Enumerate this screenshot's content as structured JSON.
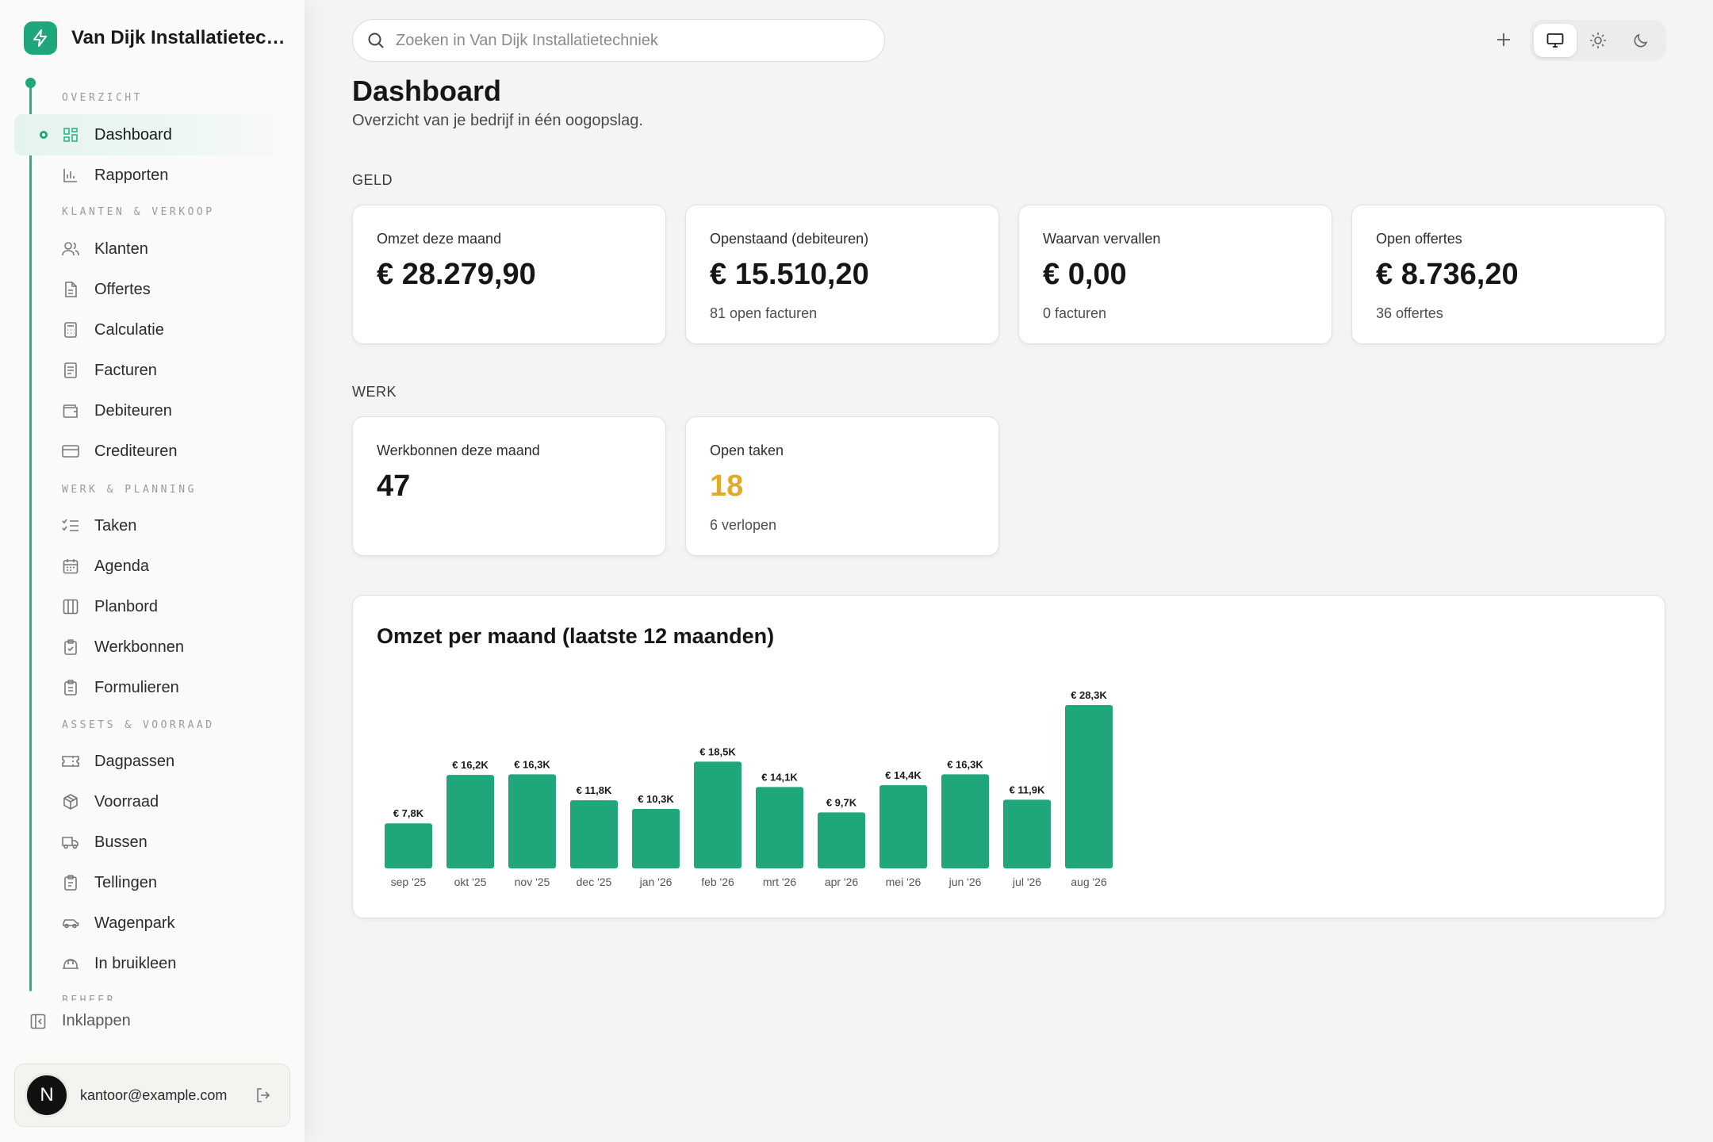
{
  "brand": {
    "name": "Van Dijk Installatietechniek"
  },
  "sidebar": {
    "sections": [
      {
        "label": "OVERZICHT"
      },
      {
        "label": "KLANTEN & VERKOOP"
      },
      {
        "label": "WERK & PLANNING"
      },
      {
        "label": "ASSETS & VOORRAAD"
      },
      {
        "label": "BEHEER"
      }
    ],
    "items": [
      {
        "label": "Dashboard",
        "icon": "grid-icon",
        "active": true
      },
      {
        "label": "Rapporten",
        "icon": "bar-chart-icon"
      },
      {
        "label": "Klanten",
        "icon": "users-icon"
      },
      {
        "label": "Offertes",
        "icon": "document-icon"
      },
      {
        "label": "Calculatie",
        "icon": "calculator-icon"
      },
      {
        "label": "Facturen",
        "icon": "receipt-icon"
      },
      {
        "label": "Debiteuren",
        "icon": "wallet-icon"
      },
      {
        "label": "Crediteuren",
        "icon": "credit-card-icon"
      },
      {
        "label": "Taken",
        "icon": "checklist-icon"
      },
      {
        "label": "Agenda",
        "icon": "calendar-icon"
      },
      {
        "label": "Planbord",
        "icon": "columns-icon"
      },
      {
        "label": "Werkbonnen",
        "icon": "clipboard-check-icon"
      },
      {
        "label": "Formulieren",
        "icon": "clipboard-list-icon"
      },
      {
        "label": "Dagpassen",
        "icon": "ticket-icon"
      },
      {
        "label": "Voorraad",
        "icon": "box-icon"
      },
      {
        "label": "Bussen",
        "icon": "truck-icon"
      },
      {
        "label": "Tellingen",
        "icon": "clipboard-icon"
      },
      {
        "label": "Wagenpark",
        "icon": "car-icon"
      },
      {
        "label": "In bruikleen",
        "icon": "hard-hat-icon"
      }
    ],
    "collapse_label": "Inklappen",
    "user": {
      "initial": "N",
      "email": "kantoor@example.com"
    }
  },
  "search": {
    "placeholder": "Zoeken in Van Dijk Installatietechniek"
  },
  "header": {
    "title": "Dashboard",
    "subtitle": "Overzicht van je bedrijf in één oogopslag."
  },
  "geld": {
    "label": "GELD",
    "cards": [
      {
        "label": "Omzet deze maand",
        "value": "€ 28.279,90",
        "sub": ""
      },
      {
        "label": "Openstaand (debiteuren)",
        "value": "€ 15.510,20",
        "sub": "81 open facturen"
      },
      {
        "label": "Waarvan vervallen",
        "value": "€ 0,00",
        "sub": "0 facturen"
      },
      {
        "label": "Open offertes",
        "value": "€ 8.736,20",
        "sub": "36 offertes"
      }
    ]
  },
  "werk": {
    "label": "WERK",
    "cards": [
      {
        "label": "Werkbonnen deze maand",
        "value": "47",
        "sub": ""
      },
      {
        "label": "Open taken",
        "value": "18",
        "sub": "6 verlopen"
      }
    ]
  },
  "colors": {
    "accent": "#1fa67a",
    "bar": "#1fa67a",
    "warning": "#e0ab2a"
  },
  "chart_data": {
    "type": "bar",
    "title": "Omzet per maand (laatste 12 maanden)",
    "categories": [
      "sep '25",
      "okt '25",
      "nov '25",
      "dec '25",
      "jan '26",
      "feb '26",
      "mrt '26",
      "apr '26",
      "mei '26",
      "jun '26",
      "jul '26",
      "aug '26"
    ],
    "values": [
      7.8,
      16.2,
      16.3,
      11.8,
      10.3,
      18.5,
      14.1,
      9.7,
      14.4,
      16.3,
      11.9,
      28.3
    ],
    "value_labels": [
      "€ 7,8K",
      "€ 16,2K",
      "€ 16,3K",
      "€ 11,8K",
      "€ 10,3K",
      "€ 18,5K",
      "€ 14,1K",
      "€ 9,7K",
      "€ 14,4K",
      "€ 16,3K",
      "€ 11,9K",
      "€ 28,3K"
    ],
    "unit": "K",
    "grid": false,
    "legend": "none"
  }
}
